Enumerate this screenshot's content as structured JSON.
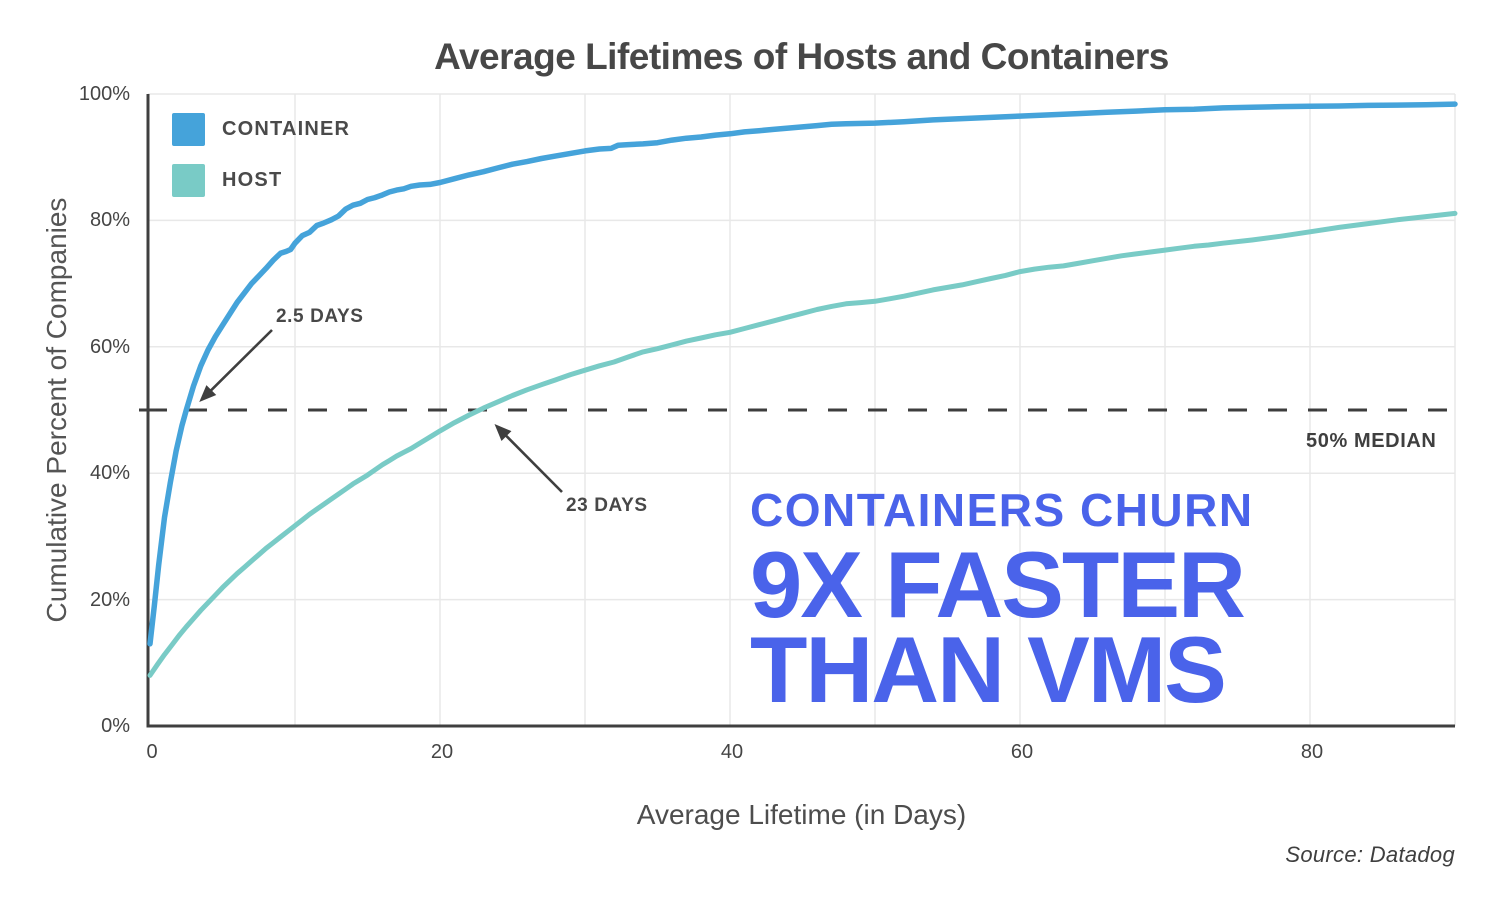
{
  "chart_data": {
    "type": "line",
    "title": "Average Lifetimes of Hosts and Containers",
    "xlabel": "Average Lifetime (in Days)",
    "ylabel": "Cumulative Percent of Companies",
    "xlim": [
      0,
      90
    ],
    "ylim": [
      0,
      100
    ],
    "x_ticks": [
      0,
      20,
      40,
      60,
      80
    ],
    "y_ticks": [
      0,
      20,
      40,
      60,
      80,
      100
    ],
    "y_tick_suffix": "%",
    "grid": {
      "x_step": 10,
      "y_step": 20,
      "visible": true
    },
    "legend_position": "top-left",
    "colors": {
      "container": "#45a3da",
      "host": "#79cbc6",
      "callout": "#4a63ea",
      "median": "#3d3d3d",
      "axis": "#3f3f3f",
      "grid": "#e8e8e8",
      "annotation": "#3f3f3f"
    },
    "series": [
      {
        "name": "CONTAINER",
        "color": "#45a3da",
        "points": [
          [
            0,
            13
          ],
          [
            0.3,
            19
          ],
          [
            0.6,
            25.5
          ],
          [
            1,
            33
          ],
          [
            1.4,
            38.5
          ],
          [
            1.8,
            43.5
          ],
          [
            2.2,
            47.5
          ],
          [
            2.5,
            50
          ],
          [
            3,
            53.8
          ],
          [
            3.5,
            57
          ],
          [
            4,
            59.5
          ],
          [
            4.5,
            61.6
          ],
          [
            5,
            63.4
          ],
          [
            5.5,
            65.2
          ],
          [
            6,
            67
          ],
          [
            6.5,
            68.5
          ],
          [
            7,
            70
          ],
          [
            7.5,
            71.2
          ],
          [
            8,
            72.4
          ],
          [
            8.5,
            73.7
          ],
          [
            9,
            74.8
          ],
          [
            9.4,
            75.1
          ],
          [
            9.7,
            75.4
          ],
          [
            10,
            76.4
          ],
          [
            10.5,
            77.6
          ],
          [
            11,
            78.1
          ],
          [
            11.5,
            79.2
          ],
          [
            12,
            79.6
          ],
          [
            12.5,
            80.1
          ],
          [
            13,
            80.7
          ],
          [
            13.5,
            81.8
          ],
          [
            14,
            82.4
          ],
          [
            14.5,
            82.7
          ],
          [
            15,
            83.3
          ],
          [
            15.5,
            83.6
          ],
          [
            16,
            84
          ],
          [
            16.5,
            84.5
          ],
          [
            17,
            84.8
          ],
          [
            17.5,
            85
          ],
          [
            18,
            85.4
          ],
          [
            18.6,
            85.6
          ],
          [
            19.3,
            85.7
          ],
          [
            20,
            86
          ],
          [
            21,
            86.6
          ],
          [
            22,
            87.2
          ],
          [
            23,
            87.7
          ],
          [
            24,
            88.3
          ],
          [
            25,
            88.9
          ],
          [
            26,
            89.3
          ],
          [
            27,
            89.8
          ],
          [
            28,
            90.2
          ],
          [
            29,
            90.6
          ],
          [
            30,
            91
          ],
          [
            31,
            91.3
          ],
          [
            31.8,
            91.4
          ],
          [
            32.3,
            91.9
          ],
          [
            33,
            92
          ],
          [
            34,
            92.1
          ],
          [
            35,
            92.3
          ],
          [
            36,
            92.7
          ],
          [
            37,
            93
          ],
          [
            38,
            93.2
          ],
          [
            39,
            93.5
          ],
          [
            40,
            93.7
          ],
          [
            41,
            94
          ],
          [
            42,
            94.2
          ],
          [
            43,
            94.4
          ],
          [
            44,
            94.6
          ],
          [
            45,
            94.8
          ],
          [
            46,
            95
          ],
          [
            47,
            95.2
          ],
          [
            48,
            95.3
          ],
          [
            50,
            95.4
          ],
          [
            52,
            95.6
          ],
          [
            54,
            95.9
          ],
          [
            56,
            96.1
          ],
          [
            58,
            96.3
          ],
          [
            60,
            96.5
          ],
          [
            62,
            96.7
          ],
          [
            64,
            96.9
          ],
          [
            66,
            97.1
          ],
          [
            68,
            97.3
          ],
          [
            70,
            97.5
          ],
          [
            72,
            97.6
          ],
          [
            74,
            97.8
          ],
          [
            76,
            97.9
          ],
          [
            78,
            98
          ],
          [
            80,
            98.05
          ],
          [
            82,
            98.1
          ],
          [
            84,
            98.2
          ],
          [
            86,
            98.25
          ],
          [
            88,
            98.3
          ],
          [
            90,
            98.4
          ]
        ]
      },
      {
        "name": "HOST",
        "color": "#79cbc6",
        "points": [
          [
            0,
            8
          ],
          [
            0.5,
            9.7
          ],
          [
            1,
            11.3
          ],
          [
            1.5,
            12.8
          ],
          [
            2,
            14.3
          ],
          [
            2.5,
            15.7
          ],
          [
            3,
            17
          ],
          [
            3.5,
            18.3
          ],
          [
            4,
            19.5
          ],
          [
            4.5,
            20.7
          ],
          [
            5,
            21.9
          ],
          [
            5.5,
            23
          ],
          [
            6,
            24.1
          ],
          [
            6.5,
            25.1
          ],
          [
            7,
            26.1
          ],
          [
            7.5,
            27.1
          ],
          [
            8,
            28.1
          ],
          [
            8.5,
            29
          ],
          [
            9,
            29.9
          ],
          [
            9.5,
            30.8
          ],
          [
            10,
            31.7
          ],
          [
            10.5,
            32.6
          ],
          [
            11,
            33.5
          ],
          [
            11.5,
            34.3
          ],
          [
            12,
            35.1
          ],
          [
            12.5,
            35.9
          ],
          [
            13,
            36.7
          ],
          [
            13.5,
            37.5
          ],
          [
            14,
            38.3
          ],
          [
            14.5,
            39
          ],
          [
            15,
            39.7
          ],
          [
            15.5,
            40.5
          ],
          [
            16,
            41.3
          ],
          [
            16.5,
            42
          ],
          [
            17,
            42.7
          ],
          [
            17.5,
            43.3
          ],
          [
            18,
            43.9
          ],
          [
            18.5,
            44.6
          ],
          [
            19,
            45.3
          ],
          [
            19.5,
            46
          ],
          [
            20,
            46.7
          ],
          [
            21,
            48
          ],
          [
            22,
            49.2
          ],
          [
            23,
            50.3
          ],
          [
            24,
            51.3
          ],
          [
            25,
            52.3
          ],
          [
            26,
            53.2
          ],
          [
            27,
            54
          ],
          [
            28,
            54.8
          ],
          [
            29,
            55.6
          ],
          [
            30,
            56.3
          ],
          [
            31,
            57
          ],
          [
            32,
            57.6
          ],
          [
            33,
            58.4
          ],
          [
            34,
            59.2
          ],
          [
            35,
            59.7
          ],
          [
            36,
            60.3
          ],
          [
            37,
            60.9
          ],
          [
            38,
            61.4
          ],
          [
            39,
            61.9
          ],
          [
            40,
            62.3
          ],
          [
            41,
            62.9
          ],
          [
            42,
            63.5
          ],
          [
            43,
            64.1
          ],
          [
            44,
            64.7
          ],
          [
            45,
            65.3
          ],
          [
            46,
            65.9
          ],
          [
            47,
            66.4
          ],
          [
            48,
            66.8
          ],
          [
            49,
            67
          ],
          [
            50,
            67.2
          ],
          [
            51,
            67.6
          ],
          [
            52,
            68
          ],
          [
            53,
            68.5
          ],
          [
            54,
            69
          ],
          [
            55,
            69.4
          ],
          [
            56,
            69.8
          ],
          [
            57,
            70.3
          ],
          [
            58,
            70.8
          ],
          [
            59,
            71.3
          ],
          [
            60,
            71.9
          ],
          [
            61,
            72.3
          ],
          [
            62,
            72.6
          ],
          [
            63,
            72.8
          ],
          [
            64,
            73.2
          ],
          [
            65,
            73.6
          ],
          [
            66,
            74
          ],
          [
            67,
            74.4
          ],
          [
            68,
            74.7
          ],
          [
            69,
            75
          ],
          [
            70,
            75.3
          ],
          [
            71,
            75.6
          ],
          [
            72,
            75.9
          ],
          [
            73,
            76.1
          ],
          [
            74,
            76.4
          ],
          [
            76,
            76.9
          ],
          [
            78,
            77.5
          ],
          [
            80,
            78.2
          ],
          [
            82,
            78.9
          ],
          [
            84,
            79.5
          ],
          [
            86,
            80.1
          ],
          [
            88,
            80.6
          ],
          [
            90,
            81.1
          ]
        ]
      }
    ],
    "median_line": {
      "value": 50,
      "label": "50% MEDIAN",
      "style": "dashed"
    },
    "annotations": [
      {
        "label": "2.5 DAYS",
        "day": 2.5,
        "pct": 50,
        "series": "CONTAINER"
      },
      {
        "label": "23 DAYS",
        "day": 23,
        "pct": 50,
        "series": "HOST"
      }
    ],
    "callout": {
      "lines": [
        "CONTAINERS CHURN",
        "9X FASTER",
        "THAN VMS"
      ],
      "color": "#4a63ea"
    },
    "source": "Source: Datadog"
  }
}
